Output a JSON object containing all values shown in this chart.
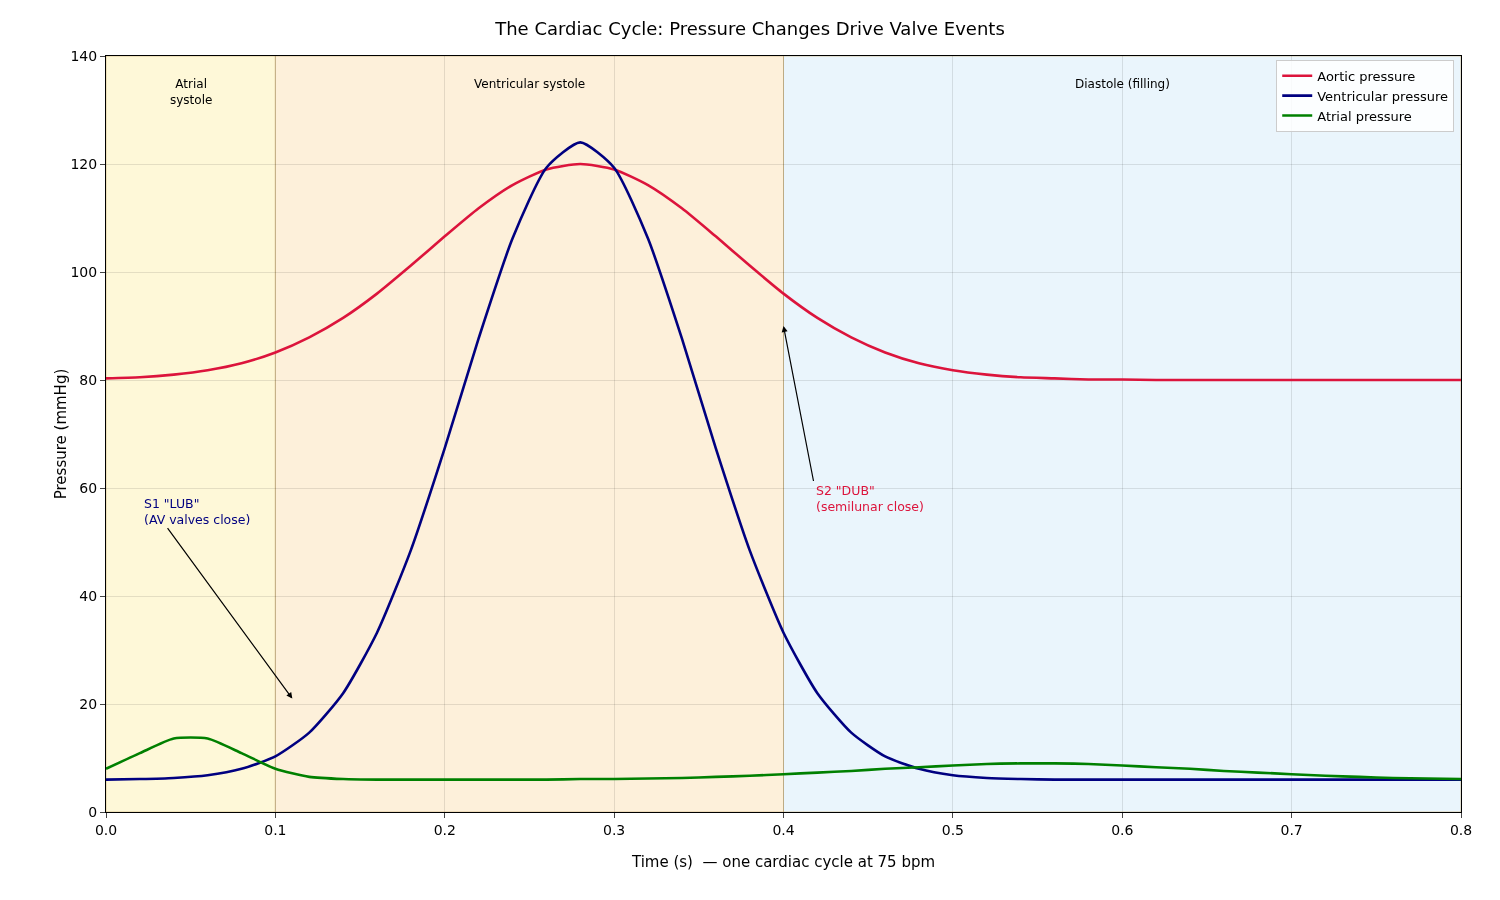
{
  "chart_data": {
    "type": "line",
    "title": "The Cardiac Cycle: Pressure Changes Drive Valve Events",
    "xlabel": "Time (s)  — one cardiac cycle at 75 bpm",
    "ylabel": "Pressure (mmHg)",
    "x": [
      0,
      0.02,
      0.04,
      0.06,
      0.08,
      0.1,
      0.12,
      0.14,
      0.16,
      0.18,
      0.2,
      0.22,
      0.24,
      0.26,
      0.28,
      0.3,
      0.32,
      0.34,
      0.36,
      0.38,
      0.4,
      0.42,
      0.44,
      0.46,
      0.48,
      0.5,
      0.52,
      0.54,
      0.56,
      0.58,
      0.6,
      0.62,
      0.64,
      0.66,
      0.68,
      0.7,
      0.72,
      0.74,
      0.76,
      0.78,
      0.8
    ],
    "series": [
      {
        "name": "Aortic pressure",
        "color": "#dc143c",
        "values": [
          80.3,
          80.5,
          81.0,
          81.8,
          83.1,
          85.1,
          87.9,
          91.5,
          96.0,
          101.2,
          106.6,
          111.8,
          116.1,
          119.0,
          120,
          119.0,
          116.1,
          111.8,
          106.6,
          101.2,
          96.0,
          91.5,
          87.9,
          85.1,
          83.1,
          81.8,
          81.0,
          80.5,
          80.3,
          80.1,
          80.1,
          80.0,
          80.0,
          80.0,
          80.0,
          80.0,
          80.0,
          80.0,
          80.0,
          80.0,
          80.0
        ]
      },
      {
        "name": "Ventricular pressure",
        "color": "#000080",
        "values": [
          6.0,
          6.1,
          6.3,
          6.8,
          8.0,
          10.3,
          14.7,
          22.0,
          33.2,
          48.5,
          67.4,
          87.7,
          106.2,
          119.3,
          124,
          119.3,
          106.2,
          87.7,
          67.4,
          48.5,
          33.2,
          22.0,
          14.7,
          10.3,
          8.0,
          6.8,
          6.3,
          6.1,
          6.0,
          6.0,
          6.0,
          6.0,
          6.0,
          6.0,
          6.0,
          6.0,
          6.0,
          6.0,
          6.0,
          6.0,
          6.0
        ]
      },
      {
        "name": "Atrial pressure",
        "color": "#008000",
        "values": [
          8.0,
          10.9,
          13.6,
          13.6,
          10.9,
          8.0,
          6.5,
          6.1,
          6.0,
          6.0,
          6.0,
          6.0,
          6.0,
          6.0,
          6.1,
          6.1,
          6.2,
          6.3,
          6.5,
          6.7,
          7.0,
          7.3,
          7.6,
          8.0,
          8.3,
          8.6,
          8.9,
          9.0,
          9.0,
          8.9,
          8.6,
          8.3,
          8.0,
          7.6,
          7.3,
          7.0,
          6.7,
          6.5,
          6.3,
          6.2,
          6.1
        ]
      }
    ],
    "bands": [
      {
        "axis": "x",
        "from": 0,
        "to": 0.1,
        "label": "Atrial\nsystole",
        "color": "#fef8d8"
      },
      {
        "axis": "x",
        "from": 0.1,
        "to": 0.4,
        "label": "Ventricular systole",
        "color": "#fdf0da"
      },
      {
        "axis": "x",
        "from": 0.4,
        "to": 0.8,
        "label": "Diastole (filling)",
        "color": "#eaf5fc"
      }
    ],
    "annotations": [
      "S1 \"LUB\"\n(AV valves close)",
      {
        "text": "S2 \"DUB\"\n(semilunar close)",
        "x": 0.4,
        "y": 90
      }
    ],
    "xlim": [
      0,
      0.8
    ],
    "xticks": [
      {
        "value": 0,
        "label": "0.0"
      },
      0.1,
      0.2,
      0.3,
      0.4,
      0.5,
      0.6,
      0.7,
      0.8
    ],
    "ylim": [
      0,
      140
    ],
    "yticks": [
      0,
      20,
      40,
      60,
      80,
      100,
      120,
      140
    ],
    "grid": true,
    "legend": "top right",
    "line_style": "solid",
    "marker": "none"
  }
}
